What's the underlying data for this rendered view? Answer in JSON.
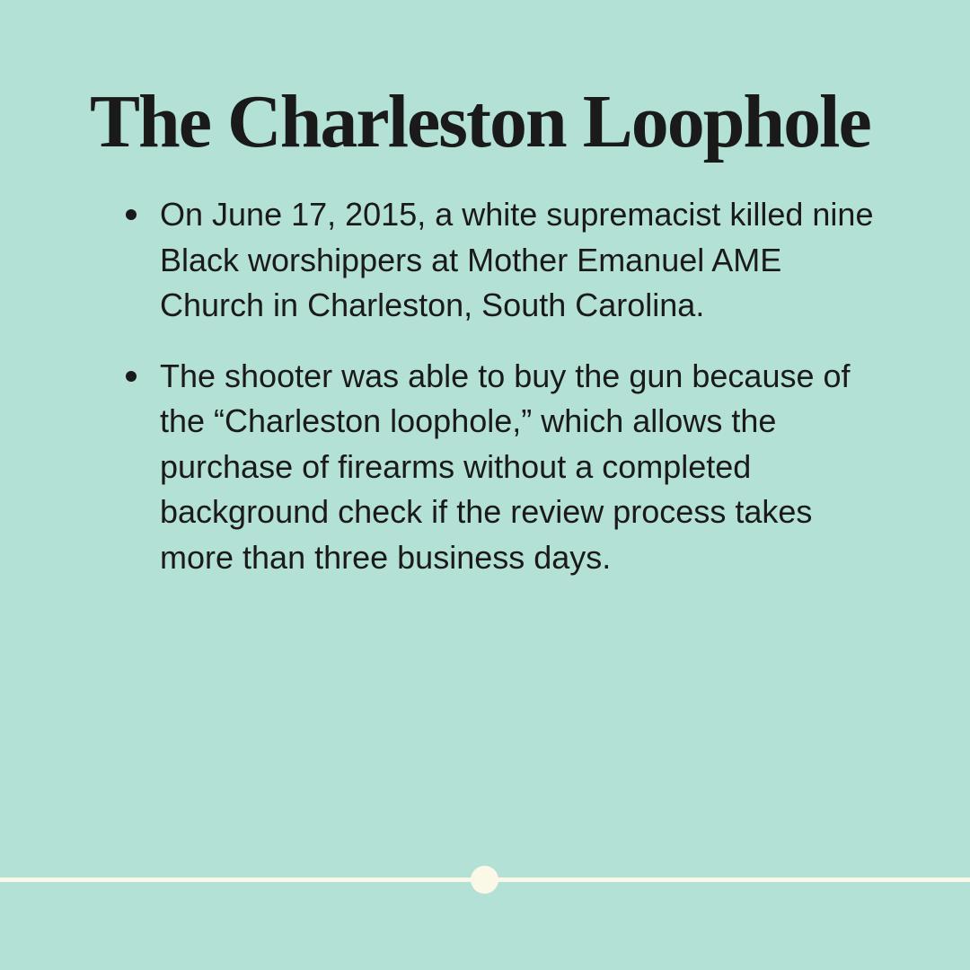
{
  "colors": {
    "background": "#b4e1d6",
    "text": "#1a1a1a",
    "timeline": "#fbf8e8"
  },
  "title": "The Charleston Loophole",
  "bullets": [
    "On June 17, 2015, a white supremacist killed nine Black worshippers at Mother Emanuel AME Church in Charleston, South Carolina.",
    "The shooter was able to buy the gun because of the “Charleston loophole,” which allows the purchase of firearms without a completed background check if the review process takes more than three business days."
  ],
  "progress": {
    "current_slide": 1
  }
}
